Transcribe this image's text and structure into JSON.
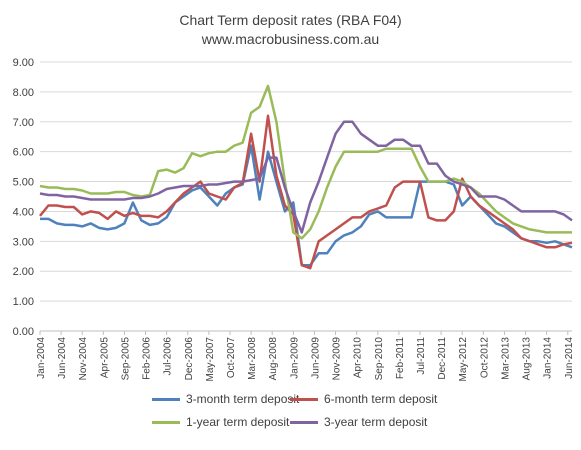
{
  "chart_data": {
    "type": "line",
    "title": "Chart Term deposit rates (RBA F04)",
    "subtitle": "www.macrobusiness.com.au",
    "xlabel": "",
    "ylabel": "",
    "ylim": [
      0,
      9
    ],
    "yticks": [
      "0.00",
      "1.00",
      "2.00",
      "3.00",
      "4.00",
      "5.00",
      "6.00",
      "7.00",
      "8.00",
      "9.00"
    ],
    "grid": true,
    "legend_position": "bottom",
    "x_tick_labels": [
      "Jan-2004",
      "Jun-2004",
      "Nov-2004",
      "Apr-2005",
      "Sep-2005",
      "Feb-2006",
      "Jul-2006",
      "Dec-2006",
      "May-2007",
      "Oct-2007",
      "Mar-2008",
      "Aug-2008",
      "Jan-2009",
      "Jun-2009",
      "Nov-2009",
      "Apr-2010",
      "Sep-2010",
      "Feb-2011",
      "Jul-2011",
      "Dec-2011",
      "May-2012",
      "Oct-2012",
      "Mar-2013",
      "Aug-2013",
      "Jan-2014",
      "Jun-2014"
    ],
    "x": [
      "Jan-2004",
      "Mar-2004",
      "May-2004",
      "Jul-2004",
      "Sep-2004",
      "Nov-2004",
      "Jan-2005",
      "Mar-2005",
      "May-2005",
      "Jul-2005",
      "Sep-2005",
      "Nov-2005",
      "Jan-2006",
      "Mar-2006",
      "May-2006",
      "Jul-2006",
      "Sep-2006",
      "Nov-2006",
      "Jan-2007",
      "Mar-2007",
      "May-2007",
      "Jul-2007",
      "Sep-2007",
      "Nov-2007",
      "Jan-2008",
      "Mar-2008",
      "May-2008",
      "Jul-2008",
      "Sep-2008",
      "Nov-2008",
      "Jan-2009",
      "Mar-2009",
      "May-2009",
      "Jul-2009",
      "Sep-2009",
      "Nov-2009",
      "Jan-2010",
      "Mar-2010",
      "May-2010",
      "Jul-2010",
      "Sep-2010",
      "Nov-2010",
      "Jan-2011",
      "Mar-2011",
      "May-2011",
      "Jul-2011",
      "Sep-2011",
      "Nov-2011",
      "Jan-2012",
      "Mar-2012",
      "May-2012",
      "Jul-2012",
      "Sep-2012",
      "Nov-2012",
      "Jan-2013",
      "Mar-2013",
      "May-2013",
      "Jul-2013",
      "Sep-2013",
      "Nov-2013",
      "Jan-2014",
      "Mar-2014",
      "May-2014",
      "Jul-2014"
    ],
    "series": [
      {
        "name": "3-month term deposit",
        "color": "#4f81bd",
        "values": [
          3.75,
          3.75,
          3.6,
          3.55,
          3.55,
          3.5,
          3.6,
          3.45,
          3.4,
          3.45,
          3.6,
          4.3,
          3.7,
          3.55,
          3.6,
          3.8,
          4.3,
          4.5,
          4.7,
          4.8,
          4.5,
          4.2,
          4.6,
          4.8,
          4.9,
          6.2,
          4.4,
          6.0,
          5.0,
          4.0,
          4.3,
          2.2,
          2.2,
          2.6,
          2.6,
          3.0,
          3.2,
          3.3,
          3.5,
          3.9,
          4.0,
          3.8,
          3.8,
          3.8,
          3.8,
          5.0,
          5.0,
          5.0,
          5.0,
          4.9,
          4.2,
          4.5,
          4.2,
          3.9,
          3.6,
          3.5,
          3.3,
          3.1,
          3.0,
          3.0,
          2.95,
          3.0,
          2.9,
          2.8
        ]
      },
      {
        "name": "6-month term deposit",
        "color": "#c0504d",
        "values": [
          3.85,
          4.2,
          4.2,
          4.15,
          4.15,
          3.9,
          4.0,
          3.95,
          3.75,
          4.0,
          3.85,
          3.95,
          3.85,
          3.85,
          3.8,
          4.0,
          4.3,
          4.6,
          4.8,
          5.0,
          4.6,
          4.5,
          4.4,
          4.8,
          4.95,
          6.6,
          5.0,
          7.2,
          5.2,
          4.2,
          3.9,
          2.2,
          2.1,
          3.0,
          3.2,
          3.4,
          3.6,
          3.8,
          3.8,
          4.0,
          4.1,
          4.2,
          4.8,
          5.0,
          5.0,
          5.0,
          3.8,
          3.7,
          3.7,
          4.0,
          5.1,
          4.5,
          4.2,
          4.0,
          3.8,
          3.6,
          3.4,
          3.1,
          3.0,
          2.9,
          2.8,
          2.8,
          2.9,
          2.95
        ]
      },
      {
        "name": "1-year term deposit",
        "color": "#9bbb59",
        "values": [
          4.85,
          4.8,
          4.8,
          4.75,
          4.75,
          4.7,
          4.6,
          4.6,
          4.6,
          4.65,
          4.65,
          4.55,
          4.5,
          4.55,
          5.35,
          5.4,
          5.3,
          5.45,
          5.95,
          5.85,
          5.95,
          6.0,
          6.0,
          6.2,
          6.3,
          7.3,
          7.5,
          8.2,
          7.0,
          5.0,
          3.3,
          3.1,
          3.4,
          4.0,
          4.8,
          5.5,
          6.0,
          6.0,
          6.0,
          6.0,
          6.0,
          6.1,
          6.1,
          6.1,
          6.1,
          5.5,
          5.0,
          5.0,
          5.0,
          5.1,
          5.0,
          4.8,
          4.6,
          4.3,
          4.0,
          3.8,
          3.6,
          3.5,
          3.4,
          3.35,
          3.3,
          3.3,
          3.3,
          3.3
        ]
      },
      {
        "name": "3-year term deposit",
        "color": "#8064a2",
        "values": [
          4.6,
          4.55,
          4.55,
          4.5,
          4.5,
          4.45,
          4.4,
          4.4,
          4.4,
          4.4,
          4.4,
          4.45,
          4.45,
          4.5,
          4.6,
          4.75,
          4.8,
          4.85,
          4.85,
          4.85,
          4.9,
          4.9,
          4.95,
          5.0,
          5.0,
          5.05,
          5.1,
          5.8,
          5.8,
          4.8,
          4.0,
          3.3,
          4.3,
          5.0,
          5.8,
          6.6,
          7.0,
          7.0,
          6.6,
          6.4,
          6.2,
          6.2,
          6.4,
          6.4,
          6.2,
          6.2,
          5.6,
          5.6,
          5.2,
          5.0,
          4.9,
          4.8,
          4.5,
          4.5,
          4.5,
          4.4,
          4.2,
          4.0,
          4.0,
          4.0,
          4.0,
          4.0,
          3.9,
          3.7
        ]
      }
    ]
  }
}
